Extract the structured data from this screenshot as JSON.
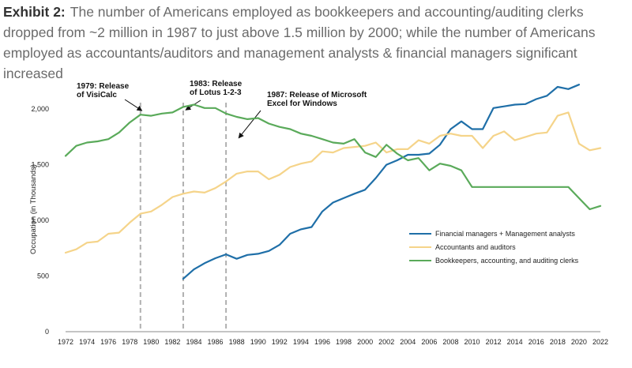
{
  "header": {
    "label": "Exhibit 2:",
    "text": "The number of Americans employed as bookkeepers and accounting/auditing clerks dropped from ~2 million in 1987 to just above 1.5 million by 2000; while the number of Americans employed as accountants/auditors and management analysts & financial managers significant increased"
  },
  "chart_data": {
    "type": "line",
    "title": "",
    "xlabel": "",
    "ylabel": "Occupation (in Thousands)",
    "xlim": [
      1972,
      2022
    ],
    "ylim": [
      0,
      2200
    ],
    "grid": false,
    "legend_position": "right",
    "x_ticks": [
      1972,
      1974,
      1976,
      1978,
      1980,
      1982,
      1984,
      1986,
      1988,
      1990,
      1992,
      1994,
      1996,
      1998,
      2000,
      2002,
      2004,
      2006,
      2008,
      2010,
      2012,
      2014,
      2016,
      2018,
      2020,
      2022
    ],
    "y_ticks": [
      {
        "value": 0,
        "label": "0"
      },
      {
        "value": 500,
        "label": "500"
      },
      {
        "value": 1000,
        "label": "1,000"
      },
      {
        "value": 1500,
        "label": "1,500"
      },
      {
        "value": 2000,
        "label": "2,000"
      }
    ],
    "series": [
      {
        "name": "Financial managers + Management analysts",
        "color": "#1f6fa8",
        "x": [
          1983,
          1984,
          1985,
          1986,
          1987,
          1988,
          1989,
          1990,
          1991,
          1992,
          1993,
          1994,
          1995,
          1996,
          1997,
          1998,
          1999,
          2000,
          2001,
          2002,
          2003,
          2004,
          2005,
          2006,
          2007,
          2008,
          2009,
          2010,
          2011,
          2012,
          2013,
          2014,
          2015,
          2016,
          2017,
          2018,
          2019,
          2020
        ],
        "values": [
          475,
          560,
          615,
          660,
          695,
          655,
          690,
          700,
          725,
          780,
          880,
          920,
          940,
          1080,
          1160,
          1200,
          1240,
          1275,
          1380,
          1500,
          1540,
          1590,
          1590,
          1600,
          1680,
          1820,
          1890,
          1820,
          1820,
          2010,
          2025,
          2040,
          2045,
          2090,
          2120,
          2200,
          2180,
          2220
        ]
      },
      {
        "name": "Accountants and auditors",
        "color": "#f5d48a",
        "x": [
          1972,
          1973,
          1974,
          1975,
          1976,
          1977,
          1978,
          1979,
          1980,
          1981,
          1982,
          1983,
          1984,
          1985,
          1986,
          1987,
          1988,
          1989,
          1990,
          1991,
          1992,
          1993,
          1994,
          1995,
          1996,
          1997,
          1998,
          1999,
          2000,
          2001,
          2002,
          2003,
          2004,
          2005,
          2006,
          2007,
          2008,
          2009,
          2010,
          2011,
          2012,
          2013,
          2014,
          2015,
          2016,
          2017,
          2018,
          2019,
          2020,
          2021,
          2022
        ],
        "values": [
          710,
          740,
          800,
          810,
          880,
          890,
          980,
          1060,
          1080,
          1140,
          1210,
          1240,
          1260,
          1250,
          1290,
          1350,
          1420,
          1440,
          1440,
          1370,
          1410,
          1480,
          1510,
          1530,
          1620,
          1610,
          1650,
          1660,
          1670,
          1700,
          1610,
          1640,
          1640,
          1720,
          1690,
          1760,
          1780,
          1760,
          1760,
          1650,
          1760,
          1800,
          1720,
          1750,
          1780,
          1790,
          1940,
          1970,
          1690,
          1630,
          1650
        ]
      },
      {
        "name": "Bookkeepers, accounting, and auditing clerks",
        "color": "#5aaa5a",
        "x": [
          1972,
          1973,
          1974,
          1975,
          1976,
          1977,
          1978,
          1979,
          1980,
          1981,
          1982,
          1983,
          1984,
          1985,
          1986,
          1987,
          1988,
          1989,
          1990,
          1991,
          1992,
          1993,
          1994,
          1995,
          1996,
          1997,
          1998,
          1999,
          2000,
          2001,
          2002,
          2003,
          2004,
          2005,
          2006,
          2007,
          2008,
          2009,
          2010,
          2011,
          2012,
          2013,
          2014,
          2015,
          2016,
          2017,
          2018,
          2019,
          2020,
          2021,
          2022
        ],
        "values": [
          1580,
          1670,
          1700,
          1710,
          1730,
          1790,
          1880,
          1950,
          1940,
          1960,
          1970,
          2020,
          2040,
          2010,
          2010,
          1960,
          1930,
          1910,
          1920,
          1870,
          1840,
          1820,
          1780,
          1760,
          1730,
          1700,
          1690,
          1730,
          1610,
          1570,
          1680,
          1600,
          1540,
          1560,
          1450,
          1510,
          1490,
          1450,
          1300,
          1300,
          1300,
          1300,
          1300,
          1300,
          1300,
          1300,
          1300,
          1300,
          1200,
          1100,
          1130
        ]
      }
    ],
    "annotations": [
      {
        "year": 1979,
        "lines": [
          "1979: Release",
          "of VisiCalc"
        ]
      },
      {
        "year": 1983,
        "lines": [
          "1983: Release",
          "of Lotus 1-2-3"
        ]
      },
      {
        "year": 1987,
        "lines": [
          "1987: Release of Microsoft",
          "Excel for Windows"
        ]
      }
    ]
  }
}
